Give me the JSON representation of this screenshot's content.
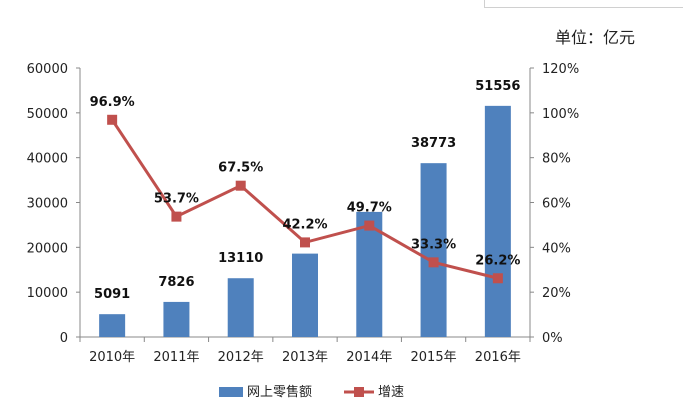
{
  "unit_label": "单位：亿元",
  "chart_data": {
    "type": "bar",
    "categories": [
      "2010年",
      "2011年",
      "2012年",
      "2013年",
      "2014年",
      "2015年",
      "2016年"
    ],
    "series": [
      {
        "name": "网上零售额",
        "type": "bar",
        "axis": "left",
        "values": [
          5091,
          7826,
          13110,
          18600,
          27900,
          38773,
          51556
        ],
        "labels": [
          "5091",
          "7826",
          "13110",
          "",
          "",
          "38773",
          "51556"
        ],
        "color": "#4f81bd"
      },
      {
        "name": "增速",
        "type": "line",
        "axis": "right",
        "values": [
          96.9,
          53.7,
          67.5,
          42.2,
          49.7,
          33.3,
          26.2
        ],
        "labels": [
          "96.9%",
          "53.7%",
          "67.5%",
          "42.2%",
          "49.7%",
          "33.3%",
          "26.2%"
        ],
        "color": "#c0504d"
      }
    ],
    "y_left": {
      "ylim": [
        0,
        60000
      ],
      "ticks": [
        "0",
        "10000",
        "20000",
        "30000",
        "40000",
        "50000",
        "60000"
      ]
    },
    "y_right": {
      "ylim": [
        0,
        120
      ],
      "ticks": [
        "0%",
        "20%",
        "40%",
        "60%",
        "80%",
        "100%",
        "120%"
      ]
    },
    "grid": false,
    "legend_position": "bottom"
  }
}
